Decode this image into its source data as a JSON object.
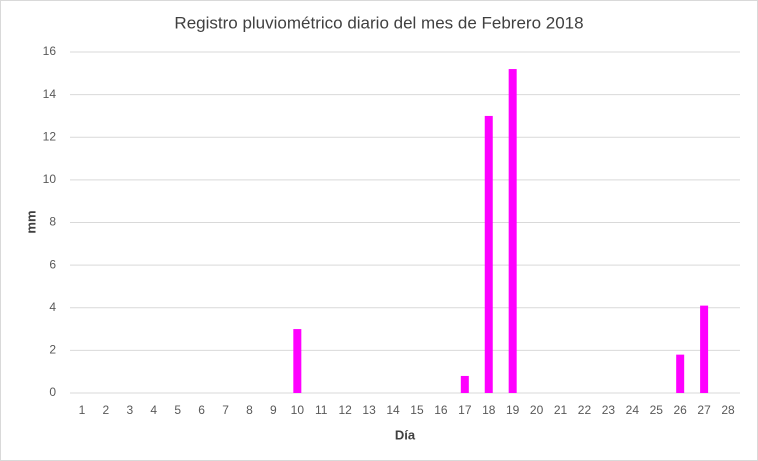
{
  "chart_data": {
    "type": "bar",
    "title": "Registro pluviométrico  diario del mes de Febrero 2018",
    "x_label": "Día",
    "y_label": "mm",
    "categories": [
      "1",
      "2",
      "3",
      "4",
      "5",
      "6",
      "7",
      "8",
      "9",
      "10",
      "11",
      "12",
      "13",
      "14",
      "15",
      "16",
      "17",
      "18",
      "19",
      "20",
      "21",
      "22",
      "23",
      "24",
      "25",
      "26",
      "27",
      "28"
    ],
    "values": [
      0,
      0,
      0,
      0,
      0,
      0,
      0,
      0,
      0,
      3,
      0,
      0,
      0,
      0,
      0,
      0,
      0.8,
      13,
      15.2,
      0,
      0,
      0,
      0,
      0,
      0,
      1.8,
      4.1,
      0
    ],
    "color": "#ff00ff",
    "ylim": [
      0,
      16
    ],
    "yticks": [
      0,
      2,
      4,
      6,
      8,
      10,
      12,
      14,
      16
    ],
    "grid": true
  }
}
